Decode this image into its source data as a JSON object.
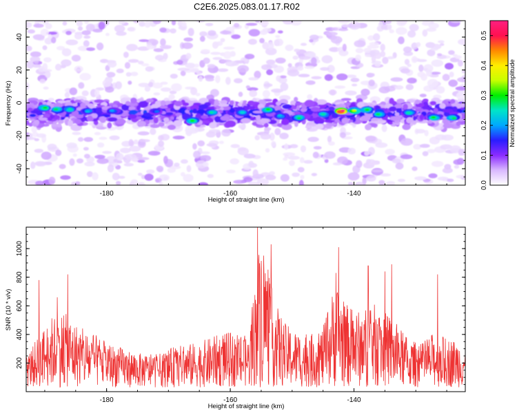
{
  "title": "C2E6.2025.083.01.17.R02",
  "chart_data": [
    {
      "type": "heatmap",
      "xlabel": "Height of straight line (km)",
      "ylabel": "Frequency (Hz)",
      "xlim": [
        -193,
        -122
      ],
      "ylim": [
        -50,
        50
      ],
      "xticks": [
        "-180",
        "-160",
        "-140"
      ],
      "xtick_values": [
        -180,
        -160,
        -140
      ],
      "yticks": [
        "-40",
        "-20",
        "0",
        "20",
        "40"
      ],
      "ytick_values": [
        -40,
        -20,
        0,
        20,
        40
      ],
      "band_center_hz": -6,
      "band_halfwidth_hz": 9,
      "hotspots": [
        {
          "x": -190,
          "y": -3,
          "v": 0.3
        },
        {
          "x": -188,
          "y": -4,
          "v": 0.28
        },
        {
          "x": -186,
          "y": -4,
          "v": 0.26
        },
        {
          "x": -183,
          "y": -5,
          "v": 0.22
        },
        {
          "x": -179,
          "y": -5,
          "v": 0.2
        },
        {
          "x": -172,
          "y": -5,
          "v": 0.18
        },
        {
          "x": -166,
          "y": -11,
          "v": 0.3
        },
        {
          "x": -163,
          "y": -6,
          "v": 0.26
        },
        {
          "x": -158,
          "y": -6,
          "v": 0.24
        },
        {
          "x": -154,
          "y": -4,
          "v": 0.3
        },
        {
          "x": -152,
          "y": -8,
          "v": 0.22
        },
        {
          "x": -149,
          "y": -9,
          "v": 0.28
        },
        {
          "x": -145,
          "y": -7,
          "v": 0.26
        },
        {
          "x": -142,
          "y": -5,
          "v": 0.55
        },
        {
          "x": -140,
          "y": -5,
          "v": 0.35
        },
        {
          "x": -138,
          "y": -4,
          "v": 0.3
        },
        {
          "x": -136,
          "y": -7,
          "v": 0.28
        },
        {
          "x": -131,
          "y": -6,
          "v": 0.26
        },
        {
          "x": -127,
          "y": -9,
          "v": 0.3
        },
        {
          "x": -124,
          "y": -9,
          "v": 0.28
        }
      ],
      "colorbar": {
        "label": "Normalized spectral amplitude",
        "range": [
          0.0,
          0.55
        ],
        "ticks": [
          "0.0",
          "0.1",
          "0.2",
          "0.3",
          "0.4",
          "0.5"
        ],
        "tick_values": [
          0.0,
          0.1,
          0.2,
          0.3,
          0.4,
          0.5
        ],
        "colors": [
          "#ffffff",
          "#d9b8ff",
          "#8b2cff",
          "#2a1cff",
          "#00a8ff",
          "#00e5c8",
          "#00ee00",
          "#c8ff00",
          "#ffee00",
          "#ff8800",
          "#ff1050",
          "#ff2080"
        ]
      }
    },
    {
      "type": "line",
      "xlabel": "Height of straight line (km)",
      "ylabel": "SNR (10 * v/v)",
      "xlim": [
        -193,
        -122
      ],
      "ylim": [
        0,
        1150
      ],
      "xticks": [
        "-180",
        "-160",
        "-140"
      ],
      "xtick_values": [
        -180,
        -160,
        -140
      ],
      "yticks": [
        "200",
        "400",
        "600",
        "800",
        "1000"
      ],
      "ytick_values": [
        200,
        400,
        600,
        800,
        1000
      ],
      "series": [
        {
          "color": "#ee3333",
          "x": [
            -193,
            -191,
            -189,
            -187,
            -185,
            -183,
            -181,
            -179,
            -177,
            -175,
            -173,
            -171,
            -169,
            -167,
            -165,
            -163,
            -161,
            -159,
            -157,
            -155,
            -153,
            -151,
            -149,
            -147,
            -145,
            -143,
            -141,
            -139,
            -137,
            -135,
            -133,
            -131,
            -129,
            -127,
            -125,
            -123
          ],
          "values": [
            250,
            390,
            520,
            560,
            480,
            420,
            380,
            330,
            300,
            270,
            260,
            270,
            320,
            330,
            350,
            380,
            420,
            400,
            390,
            1150,
            650,
            470,
            420,
            400,
            450,
            780,
            600,
            560,
            620,
            560,
            470,
            360,
            340,
            420,
            380,
            360
          ],
          "peaks": [
            {
              "x": -190.9,
              "y": 780
            },
            {
              "x": -188.0,
              "y": 660
            },
            {
              "x": -186.3,
              "y": 820
            },
            {
              "x": -155.6,
              "y": 1150
            },
            {
              "x": -153.4,
              "y": 1030
            },
            {
              "x": -142.5,
              "y": 1010
            },
            {
              "x": -142.9,
              "y": 830
            },
            {
              "x": -137.7,
              "y": 880
            },
            {
              "x": -135.0,
              "y": 840
            },
            {
              "x": -133.9,
              "y": 890
            },
            {
              "x": -126.5,
              "y": 820
            }
          ]
        }
      ]
    }
  ]
}
